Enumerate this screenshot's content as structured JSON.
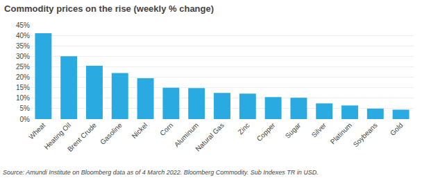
{
  "chart_data": {
    "type": "bar",
    "title": "Commodity prices on the rise (weekly % change)",
    "categories": [
      "Wheat",
      "Heating Oil",
      "Brent Crude",
      "Gasoline",
      "Nickel",
      "Corn",
      "Aluminum",
      "Natural Gas",
      "Zinc",
      "Copper",
      "Sugar",
      "Silver",
      "Platinum",
      "Soybeans",
      "Gold"
    ],
    "values": [
      41.0,
      30.0,
      25.5,
      22.0,
      19.5,
      15.0,
      14.8,
      12.5,
      12.2,
      10.5,
      10.2,
      7.5,
      6.5,
      5.0,
      4.5
    ],
    "color": "#29ABE2",
    "ylim": [
      0,
      45
    ],
    "yticks": [
      {
        "value": 0,
        "label": "0%"
      },
      {
        "value": 5,
        "label": "5%"
      },
      {
        "value": 10,
        "label": "10%"
      },
      {
        "value": 15,
        "label": "15%"
      },
      {
        "value": 20,
        "label": "20%"
      },
      {
        "value": 25,
        "label": "25%"
      },
      {
        "value": 30,
        "label": "30%"
      },
      {
        "value": 35,
        "label": "35%"
      },
      {
        "value": 40,
        "label": "40%"
      },
      {
        "value": 45,
        "label": "45%"
      }
    ],
    "grid": true,
    "annotations": [
      "Source: Amundi Institute on Bloomberg data as of 4 March 2022. Bloomberg Commodity. Sub Indexes TR in USD."
    ]
  }
}
